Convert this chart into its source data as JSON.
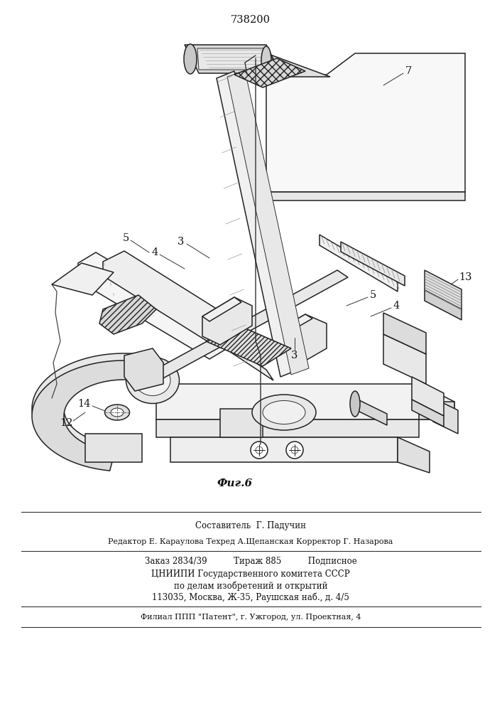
{
  "patent_number": "738200",
  "figure_caption": "Фиг.6",
  "bg_color": "#ffffff",
  "line_color": "#222222",
  "text_color": "#111111",
  "footer_lines": [
    "Составитель  Г. Падучин",
    "Редактор Е. Караулова Техред А.Щепанская Корректор Г. Назарова",
    "Заказ 2834/39          Тираж 885          Подписное",
    "ЦНИИПИ Государственного комитета СССР",
    "по делам изобретений и открытий",
    "113035, Москва, Ж-35, Раушская наб., д. 4/5",
    "Филиал ППП \"Патент\", г. Ужгород, ул. Проектная, 4"
  ]
}
